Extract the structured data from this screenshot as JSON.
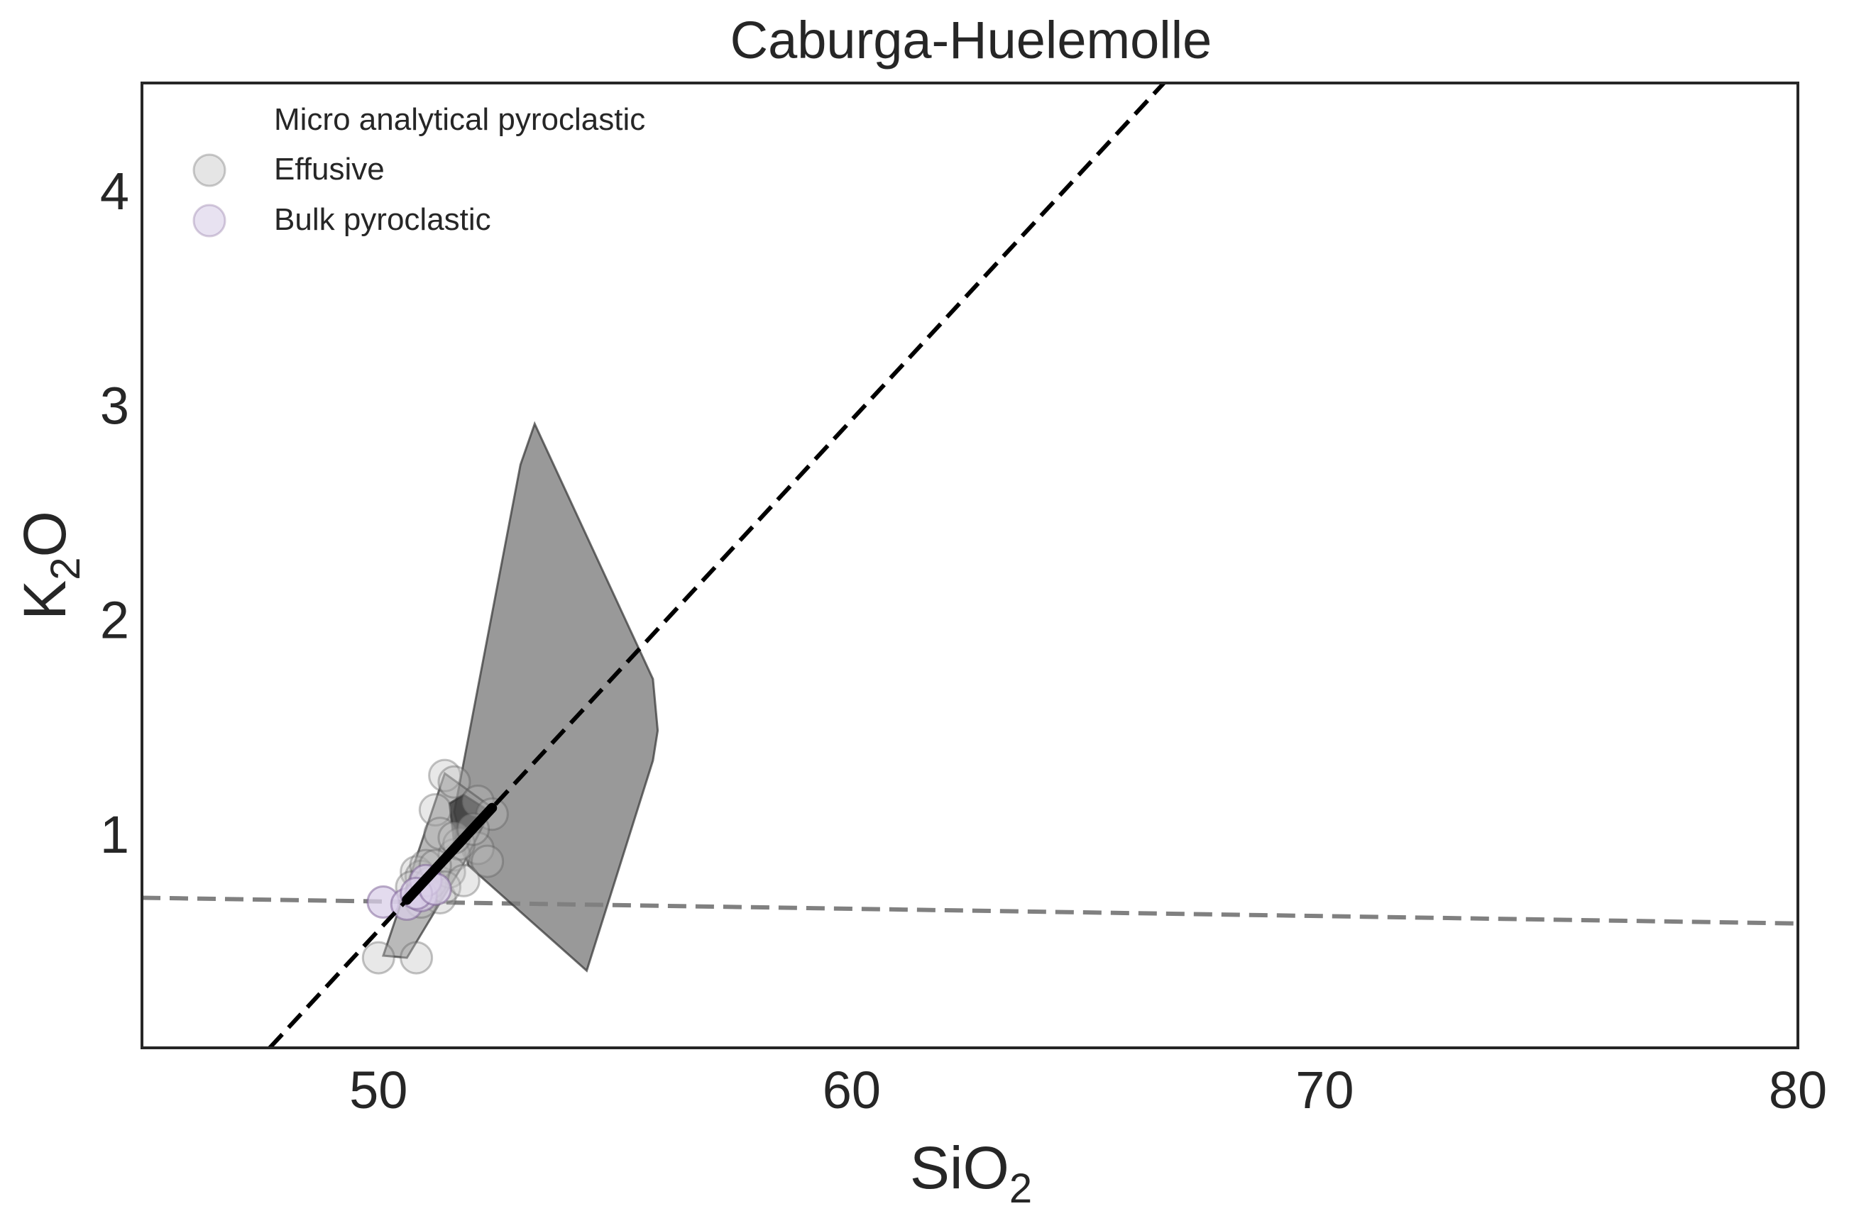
{
  "chart_data": {
    "type": "scatter",
    "title": "Caburga-Huelemolle",
    "xlabel": {
      "base": "SiO",
      "sub": "2"
    },
    "ylabel": {
      "base": "K",
      "sub": "2",
      "tail": "O"
    },
    "xlim": [
      45,
      80
    ],
    "ylim": [
      0,
      4.5
    ],
    "xticks": [
      50,
      60,
      70,
      80
    ],
    "yticks": [
      1,
      2,
      3,
      4
    ],
    "grid": false,
    "legend": {
      "placement": "top-left",
      "entries": [
        {
          "label": "Micro analytical pyroclastic",
          "marker": "none"
        },
        {
          "label": "Effusive",
          "marker": "circle",
          "color": "#bdbdbd"
        },
        {
          "label": "Bulk pyroclastic",
          "marker": "circle",
          "color": "#d9cfe8"
        }
      ]
    },
    "colors": {
      "effusive_fill": "#bdbdbd",
      "bulk_fill": "#d9cfe8",
      "bulk_dark": "#7a5e93",
      "hull_fill": "#808080",
      "regression_line": "#000000",
      "reference_line": "#808080"
    },
    "reference_lines": [
      {
        "name": "regression",
        "style": "dashed",
        "color": "#000000",
        "points": [
          [
            47.7,
            0.0
          ],
          [
            66.6,
            4.5
          ]
        ]
      },
      {
        "name": "reference",
        "style": "dashed",
        "color": "#808080",
        "points": [
          [
            45,
            0.7
          ],
          [
            80,
            0.58
          ]
        ]
      }
    ],
    "hulls": [
      {
        "name": "Effusive field",
        "points": [
          [
            51.6,
            1.1
          ],
          [
            53.0,
            2.72
          ],
          [
            53.3,
            2.91
          ],
          [
            55.8,
            1.72
          ],
          [
            55.9,
            1.48
          ],
          [
            55.8,
            1.34
          ],
          [
            54.4,
            0.36
          ],
          [
            51.9,
            0.85
          ]
        ]
      },
      {
        "name": "Micro analytical field",
        "points": [
          [
            50.1,
            0.43
          ],
          [
            51.4,
            1.28
          ],
          [
            52.4,
            1.12
          ],
          [
            51.8,
            0.86
          ],
          [
            50.6,
            0.42
          ]
        ]
      },
      {
        "name": "Bulk pyroclastic field",
        "points": [
          [
            51.5,
            1.14
          ],
          [
            51.8,
            1.18
          ],
          [
            52.3,
            1.11
          ],
          [
            51.6,
            0.95
          ]
        ]
      }
    ],
    "series": [
      {
        "name": "Effusive",
        "color": "#bdbdbd",
        "points": [
          [
            50.0,
            0.42
          ],
          [
            50.8,
            0.42
          ],
          [
            51.4,
            1.27
          ],
          [
            51.6,
            1.24
          ],
          [
            51.2,
            1.11
          ],
          [
            52.1,
            1.15
          ],
          [
            52.4,
            1.09
          ],
          [
            51.3,
            1.0
          ],
          [
            52.1,
            0.93
          ],
          [
            52.3,
            0.87
          ],
          [
            51.6,
            0.9
          ],
          [
            51.7,
            0.95
          ],
          [
            50.8,
            0.82
          ],
          [
            50.9,
            0.8
          ],
          [
            51.0,
            0.85
          ],
          [
            50.7,
            0.75
          ],
          [
            51.0,
            0.72
          ],
          [
            51.3,
            0.7
          ],
          [
            51.1,
            0.77
          ],
          [
            51.5,
            0.82
          ],
          [
            51.2,
            0.85
          ],
          [
            50.9,
            0.68
          ],
          [
            51.4,
            0.75
          ],
          [
            51.8,
            0.78
          ],
          [
            51.6,
            0.98
          ],
          [
            52.0,
            1.02
          ]
        ]
      },
      {
        "name": "Bulk pyroclastic",
        "color": "#d9cfe8",
        "points": [
          [
            50.1,
            0.68
          ],
          [
            50.6,
            0.67
          ],
          [
            50.9,
            0.71
          ],
          [
            51.0,
            0.78
          ],
          [
            50.8,
            0.72
          ],
          [
            51.2,
            0.74
          ]
        ]
      }
    ]
  }
}
